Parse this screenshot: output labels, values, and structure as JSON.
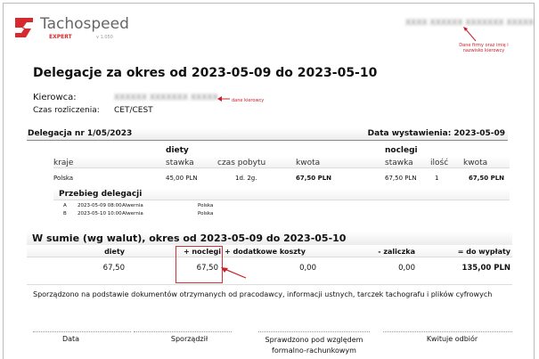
{
  "logo": {
    "name": "Tachospeed",
    "sub": "EXPERT",
    "version": "v 1.050"
  },
  "annotations": {
    "company_note": "Dane firmy oraz imię i nazwisko kierowcy",
    "driver_note": "dane kierowcy"
  },
  "title": "Delegacje za okres od 2023-05-09 do 2023-05-10",
  "driver": {
    "label": "Kierowca:",
    "time_label": "Czas rozliczenia:",
    "time_value": "CET/CEST"
  },
  "delegation": {
    "number": "Delegacja nr 1/05/2023",
    "issue_date": "Data wystawienia: 2023-05-09",
    "group_diety": "diety",
    "group_noclegi": "noclegi",
    "headers": [
      "kraje",
      "stawka",
      "czas pobytu",
      "kwota",
      "stawka",
      "ilość",
      "kwota"
    ],
    "row": [
      "Polska",
      "45,00 PLN",
      "1d. 2g.",
      "67,50 PLN",
      "67,50 PLN",
      "1",
      "67,50 PLN"
    ],
    "route_title": "Przebieg delegacji",
    "route": [
      [
        "A",
        "2023-05-09 08:00",
        "Alwernia",
        "Polska"
      ],
      [
        "B",
        "2023-05-10 10:00",
        "Alwernia",
        "Polska"
      ]
    ]
  },
  "summary": {
    "title": "W sumie (wg walut), okres od 2023-05-09 do 2023-05-10",
    "headers": [
      "diety",
      "+ noclegi",
      "+ dodatkowe koszty",
      "- zaliczka",
      "= do wypłaty"
    ],
    "values": [
      "67,50",
      "67,50",
      "0,00",
      "0,00",
      "135,00 PLN"
    ],
    "highlight_color": "#d0313a"
  },
  "footer_text": "Sporządzono na podstawie dokumentów otrzymanych od pracodawcy, informacji ustnych, tarczek tachografu i plików cyfrowych",
  "signatures": [
    "Data",
    "Sporządził",
    "Sprawdzono pod względem formalno-rachunkowym",
    "Kwituje odbiór"
  ]
}
